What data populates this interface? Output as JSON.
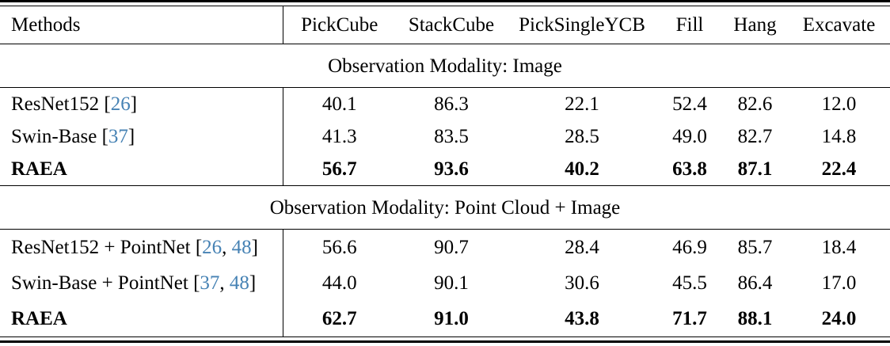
{
  "colors": {
    "citation": "#4682B4",
    "text": "#000000",
    "background": "#ffffff",
    "rule": "#000000"
  },
  "table": {
    "header": {
      "methods_label": "Methods",
      "columns": [
        "PickCube",
        "StackCube",
        "PickSingleYCB",
        "Fill",
        "Hang",
        "Excavate"
      ]
    },
    "sections": [
      {
        "title": "Observation Modality: Image",
        "rows": [
          {
            "method": "ResNet152",
            "citations": [
              "26"
            ],
            "bold": false,
            "values": [
              "40.1",
              "86.3",
              "22.1",
              "52.4",
              "82.6",
              "12.0"
            ]
          },
          {
            "method": "Swin-Base",
            "citations": [
              "37"
            ],
            "bold": false,
            "values": [
              "41.3",
              "83.5",
              "28.5",
              "49.0",
              "82.7",
              "14.8"
            ]
          },
          {
            "method": "RAEA",
            "citations": [],
            "bold": true,
            "values": [
              "56.7",
              "93.6",
              "40.2",
              "63.8",
              "87.1",
              "22.4"
            ]
          }
        ]
      },
      {
        "title": "Observation Modality: Point Cloud + Image",
        "rows": [
          {
            "method": "ResNet152 + PointNet",
            "citations": [
              "26",
              "48"
            ],
            "bold": false,
            "values": [
              "56.6",
              "90.7",
              "28.4",
              "46.9",
              "85.7",
              "18.4"
            ]
          },
          {
            "method": "Swin-Base + PointNet",
            "citations": [
              "37",
              "48"
            ],
            "bold": false,
            "values": [
              "44.0",
              "90.1",
              "30.6",
              "45.5",
              "86.4",
              "17.0"
            ]
          },
          {
            "method": "RAEA",
            "citations": [],
            "bold": true,
            "values": [
              "62.7",
              "91.0",
              "43.8",
              "71.7",
              "88.1",
              "24.0"
            ]
          }
        ]
      }
    ]
  }
}
